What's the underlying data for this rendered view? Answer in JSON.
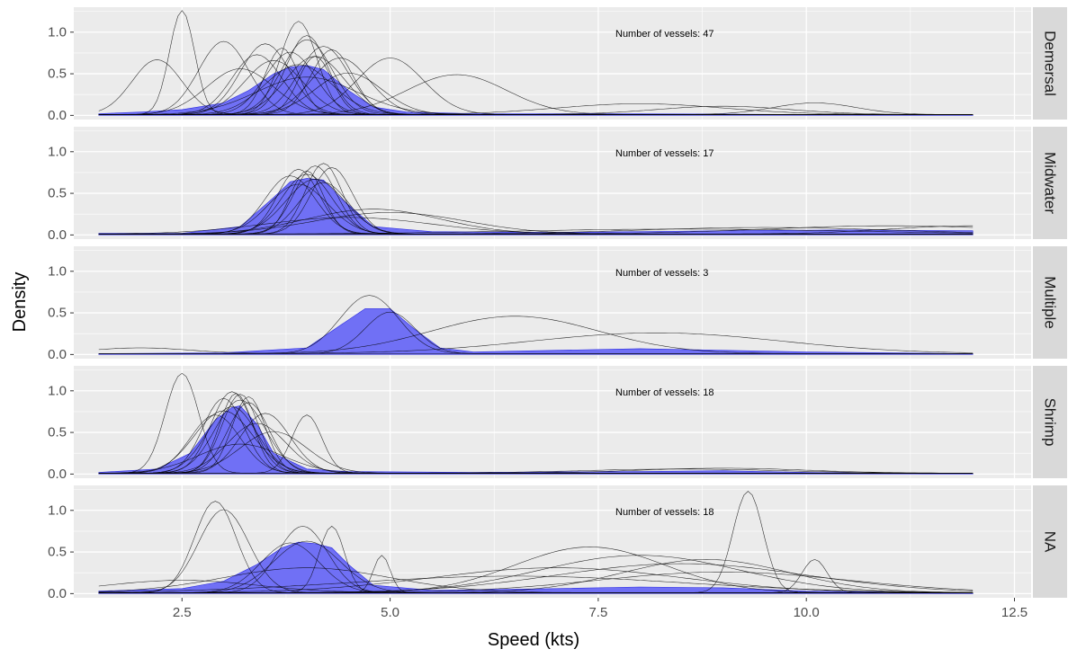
{
  "chart_data": {
    "type": "density",
    "xlabel": "Speed (kts)",
    "ylabel": "Density",
    "xlim": [
      1.2,
      12.7
    ],
    "ylim": [
      -0.05,
      1.3
    ],
    "x_ticks": [
      "2.5",
      "5.0",
      "7.5",
      "10.0",
      "12.5"
    ],
    "x_tick_values": [
      2.5,
      5.0,
      7.5,
      10.0,
      12.5
    ],
    "y_ticks": [
      "0.0",
      "0.5",
      "1.0"
    ],
    "y_tick_values": [
      0.0,
      0.5,
      1.0
    ],
    "grid": true,
    "colors": {
      "panel_bg": "#ebebeb",
      "strip_bg": "#d9d9d9",
      "grid": "#ffffff",
      "fill": "#7070f5",
      "fill_edge": "#2a2ae0",
      "line": "#000000"
    },
    "facets": [
      {
        "strip": "Demersal",
        "annotation": "Number of vessels: 47",
        "n_vessels": 47,
        "mean_density": {
          "x": [
            1.5,
            2.0,
            2.5,
            3.0,
            3.3,
            3.6,
            3.8,
            4.0,
            4.2,
            4.5,
            4.8,
            5.2,
            6.0,
            8.0,
            10.0,
            12.0
          ],
          "y": [
            0.02,
            0.04,
            0.07,
            0.15,
            0.3,
            0.5,
            0.58,
            0.6,
            0.55,
            0.3,
            0.1,
            0.04,
            0.02,
            0.02,
            0.01,
            0.0
          ]
        },
        "peaks": [
          {
            "c": 2.5,
            "s": 0.15,
            "h": 1.25
          },
          {
            "c": 2.2,
            "s": 0.3,
            "h": 0.66
          },
          {
            "c": 3.0,
            "s": 0.3,
            "h": 0.88
          },
          {
            "c": 3.5,
            "s": 0.3,
            "h": 0.85
          },
          {
            "c": 3.9,
            "s": 0.22,
            "h": 1.12
          },
          {
            "c": 4.0,
            "s": 0.25,
            "h": 0.95
          },
          {
            "c": 4.2,
            "s": 0.3,
            "h": 0.82
          },
          {
            "c": 3.8,
            "s": 0.3,
            "h": 0.75
          },
          {
            "c": 4.1,
            "s": 0.35,
            "h": 0.7
          },
          {
            "c": 3.6,
            "s": 0.35,
            "h": 0.65
          },
          {
            "c": 4.3,
            "s": 0.25,
            "h": 0.78
          },
          {
            "c": 3.9,
            "s": 0.4,
            "h": 0.6
          },
          {
            "c": 4.0,
            "s": 0.3,
            "h": 0.9
          },
          {
            "c": 3.4,
            "s": 0.3,
            "h": 0.72
          },
          {
            "c": 4.4,
            "s": 0.35,
            "h": 0.68
          },
          {
            "c": 5.0,
            "s": 0.4,
            "h": 0.68
          },
          {
            "c": 5.8,
            "s": 0.6,
            "h": 0.48
          },
          {
            "c": 4.0,
            "s": 0.6,
            "h": 0.45
          },
          {
            "c": 3.7,
            "s": 0.2,
            "h": 0.8
          },
          {
            "c": 4.1,
            "s": 0.2,
            "h": 0.7
          },
          {
            "c": 3.2,
            "s": 0.4,
            "h": 0.55
          },
          {
            "c": 10.1,
            "s": 0.5,
            "h": 0.14
          },
          {
            "c": 8.0,
            "s": 1.0,
            "h": 0.13
          },
          {
            "c": 9.0,
            "s": 0.8,
            "h": 0.1
          },
          {
            "c": 4.5,
            "s": 0.4,
            "h": 0.5
          }
        ]
      },
      {
        "strip": "Midwater",
        "annotation": "Number of vessels: 17",
        "n_vessels": 17,
        "mean_density": {
          "x": [
            1.5,
            2.5,
            3.2,
            3.6,
            3.8,
            4.0,
            4.2,
            4.4,
            4.8,
            5.5,
            7.0,
            9.0,
            10.5,
            12.0
          ],
          "y": [
            0.02,
            0.02,
            0.1,
            0.45,
            0.64,
            0.68,
            0.66,
            0.45,
            0.1,
            0.04,
            0.03,
            0.05,
            0.06,
            0.05
          ]
        },
        "peaks": [
          {
            "c": 3.9,
            "s": 0.25,
            "h": 0.78
          },
          {
            "c": 4.1,
            "s": 0.25,
            "h": 0.82
          },
          {
            "c": 4.2,
            "s": 0.22,
            "h": 0.85
          },
          {
            "c": 4.0,
            "s": 0.3,
            "h": 0.72
          },
          {
            "c": 3.8,
            "s": 0.3,
            "h": 0.7
          },
          {
            "c": 4.3,
            "s": 0.25,
            "h": 0.8
          },
          {
            "c": 4.0,
            "s": 0.2,
            "h": 0.76
          },
          {
            "c": 4.1,
            "s": 0.35,
            "h": 0.66
          },
          {
            "c": 3.9,
            "s": 0.35,
            "h": 0.6
          },
          {
            "c": 4.2,
            "s": 0.3,
            "h": 0.62
          },
          {
            "c": 4.8,
            "s": 0.8,
            "h": 0.3
          },
          {
            "c": 5.0,
            "s": 0.9,
            "h": 0.26
          },
          {
            "c": 4.5,
            "s": 1.0,
            "h": 0.2
          },
          {
            "c": 11.0,
            "s": 1.5,
            "h": 0.1
          },
          {
            "c": 9.5,
            "s": 1.5,
            "h": 0.08
          },
          {
            "c": 8.5,
            "s": 2.0,
            "h": 0.06
          },
          {
            "c": 12.0,
            "s": 1.0,
            "h": 0.1
          }
        ]
      },
      {
        "strip": "Multiple",
        "annotation": "Number of vessels: 3",
        "n_vessels": 3,
        "mean_density": {
          "x": [
            1.5,
            3.0,
            4.0,
            4.4,
            4.7,
            5.0,
            5.3,
            5.6,
            6.0,
            7.0,
            8.0,
            9.0,
            10.0,
            12.0
          ],
          "y": [
            0.01,
            0.02,
            0.08,
            0.35,
            0.55,
            0.55,
            0.3,
            0.08,
            0.03,
            0.05,
            0.07,
            0.05,
            0.03,
            0.01
          ]
        },
        "peaks": [
          {
            "c": 4.75,
            "s": 0.35,
            "h": 0.7
          },
          {
            "c": 5.0,
            "s": 0.3,
            "h": 0.5
          },
          {
            "c": 6.5,
            "s": 1.0,
            "h": 0.45
          },
          {
            "c": 8.2,
            "s": 1.5,
            "h": 0.25
          },
          {
            "c": 2.0,
            "s": 0.6,
            "h": 0.07
          }
        ]
      },
      {
        "strip": "Shrimp",
        "annotation": "Number of vessels: 18",
        "n_vessels": 18,
        "mean_density": {
          "x": [
            1.5,
            2.2,
            2.6,
            2.9,
            3.1,
            3.2,
            3.4,
            3.6,
            4.0,
            4.5,
            6.0,
            8.0,
            9.0,
            10.0,
            12.0
          ],
          "y": [
            0.02,
            0.06,
            0.25,
            0.65,
            0.8,
            0.82,
            0.6,
            0.25,
            0.06,
            0.03,
            0.02,
            0.03,
            0.04,
            0.02,
            0.0
          ]
        },
        "peaks": [
          {
            "c": 2.5,
            "s": 0.2,
            "h": 1.2
          },
          {
            "c": 3.1,
            "s": 0.25,
            "h": 0.98
          },
          {
            "c": 3.2,
            "s": 0.22,
            "h": 0.95
          },
          {
            "c": 3.0,
            "s": 0.25,
            "h": 0.9
          },
          {
            "c": 3.2,
            "s": 0.3,
            "h": 0.88
          },
          {
            "c": 3.3,
            "s": 0.25,
            "h": 0.85
          },
          {
            "c": 3.1,
            "s": 0.3,
            "h": 0.8
          },
          {
            "c": 3.5,
            "s": 0.3,
            "h": 0.72
          },
          {
            "c": 3.0,
            "s": 0.35,
            "h": 0.75
          },
          {
            "c": 4.0,
            "s": 0.18,
            "h": 0.7
          },
          {
            "c": 3.4,
            "s": 0.35,
            "h": 0.6
          },
          {
            "c": 3.2,
            "s": 0.5,
            "h": 0.35
          },
          {
            "c": 3.3,
            "s": 0.2,
            "h": 0.92
          },
          {
            "c": 2.9,
            "s": 0.3,
            "h": 0.7
          },
          {
            "c": 9.0,
            "s": 1.0,
            "h": 0.06
          },
          {
            "c": 8.5,
            "s": 1.2,
            "h": 0.05
          },
          {
            "c": 3.6,
            "s": 0.4,
            "h": 0.5
          },
          {
            "c": 3.15,
            "s": 0.2,
            "h": 0.96
          }
        ]
      },
      {
        "strip": "NA",
        "annotation": "Number of vessels: 18",
        "n_vessels": 18,
        "mean_density": {
          "x": [
            1.5,
            2.5,
            3.0,
            3.4,
            3.7,
            3.9,
            4.1,
            4.3,
            4.5,
            4.8,
            5.5,
            7.0,
            8.0,
            9.0,
            10.0,
            12.0
          ],
          "y": [
            0.03,
            0.06,
            0.15,
            0.35,
            0.55,
            0.62,
            0.6,
            0.55,
            0.35,
            0.1,
            0.04,
            0.06,
            0.08,
            0.07,
            0.03,
            0.0
          ]
        },
        "peaks": [
          {
            "c": 2.9,
            "s": 0.25,
            "h": 1.1
          },
          {
            "c": 3.0,
            "s": 0.3,
            "h": 1.0
          },
          {
            "c": 3.95,
            "s": 0.3,
            "h": 0.8
          },
          {
            "c": 4.3,
            "s": 0.15,
            "h": 0.8
          },
          {
            "c": 4.0,
            "s": 0.4,
            "h": 0.62
          },
          {
            "c": 3.8,
            "s": 0.35,
            "h": 0.6
          },
          {
            "c": 4.9,
            "s": 0.1,
            "h": 0.45
          },
          {
            "c": 9.3,
            "s": 0.18,
            "h": 1.22
          },
          {
            "c": 10.1,
            "s": 0.15,
            "h": 0.4
          },
          {
            "c": 7.4,
            "s": 0.9,
            "h": 0.55
          },
          {
            "c": 8.0,
            "s": 1.2,
            "h": 0.45
          },
          {
            "c": 8.5,
            "s": 1.5,
            "h": 0.35
          },
          {
            "c": 7.0,
            "s": 1.5,
            "h": 0.3
          },
          {
            "c": 8.8,
            "s": 1.0,
            "h": 0.4
          },
          {
            "c": 6.5,
            "s": 2.0,
            "h": 0.2
          },
          {
            "c": 2.5,
            "s": 0.9,
            "h": 0.15
          },
          {
            "c": 4.0,
            "s": 1.0,
            "h": 0.3
          },
          {
            "c": 9.0,
            "s": 1.5,
            "h": 0.25
          }
        ]
      }
    ]
  }
}
